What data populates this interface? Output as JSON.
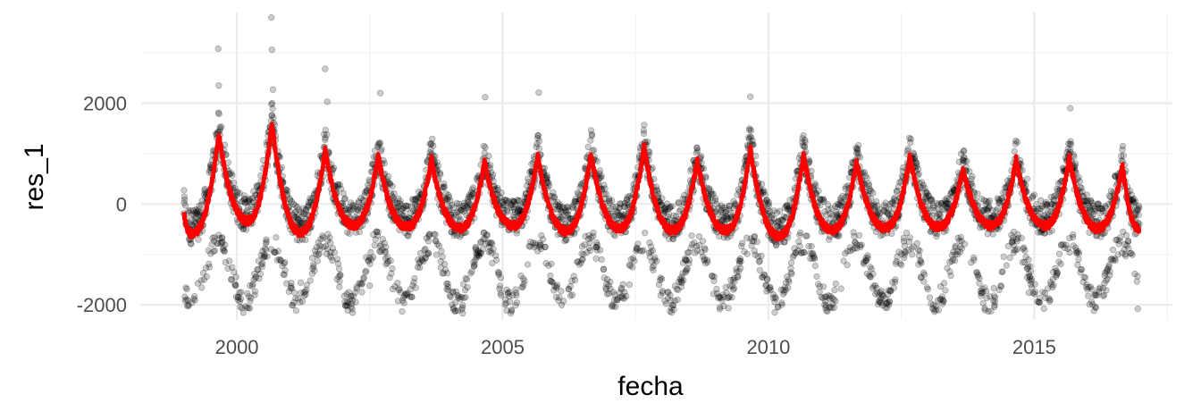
{
  "chart_data": {
    "type": "scatter",
    "title": "",
    "xlabel": "fecha",
    "ylabel": "res_1",
    "xlim": [
      1998.2,
      2017.6
    ],
    "ylim": [
      -2300,
      3800
    ],
    "x_ticks": [
      2000,
      2005,
      2010,
      2015
    ],
    "x_tick_labels": [
      "2000",
      "2005",
      "2010",
      "2015"
    ],
    "y_ticks": [
      -2000,
      0,
      2000
    ],
    "y_tick_labels": [
      "-2000",
      "0",
      "2000"
    ],
    "grid": true,
    "legend": "none",
    "colors": {
      "points": "#000000",
      "trend": "#ff0000",
      "grid": "#ebebeb"
    },
    "series": [
      {
        "kind": "points",
        "note_style": "semi-transparent black dots, daily residuals",
        "points": [
          [
            1999.65,
            3080
          ],
          [
            1999.66,
            2350
          ],
          [
            2000.65,
            3700
          ],
          [
            2000.66,
            3060
          ],
          [
            2000.68,
            2270
          ],
          [
            2001.66,
            2680
          ],
          [
            2001.7,
            2030
          ],
          [
            2002.7,
            2200
          ],
          [
            2004.67,
            2120
          ],
          [
            2005.68,
            2210
          ],
          [
            2009.66,
            2130
          ],
          [
            2015.68,
            1900
          ],
          [
            2004.25,
            -2170
          ],
          [
            2012.1,
            -1950
          ],
          [
            2012.2,
            -1880
          ],
          [
            2016.95,
            -2080
          ],
          [
            2001.2,
            -1560
          ],
          [
            2000.3,
            -1590
          ],
          [
            2006.1,
            -1730
          ],
          [
            2007.2,
            -1760
          ],
          [
            2010.3,
            -1750
          ],
          [
            2014.25,
            -1820
          ],
          [
            2014.9,
            -1760
          ],
          [
            2015.2,
            -1770
          ],
          [
            2016.15,
            -1790
          ],
          [
            2002.5,
            -1620
          ],
          [
            2009.2,
            -1650
          ]
        ],
        "seasonal_pattern": {
          "period_years": 1,
          "peak_phase": 0.66,
          "upper_band": [
            300,
            1600
          ],
          "lower_band": [
            -1700,
            -300
          ]
        }
      },
      {
        "kind": "line",
        "note_style": "red smoothed seasonal trend",
        "x": [
          1999.0,
          1999.1,
          1999.2,
          1999.3,
          1999.4,
          1999.5,
          1999.6,
          1999.66,
          1999.75,
          1999.85,
          1999.95
        ],
        "peaks": [
          [
            1999.66,
            1380
          ],
          [
            2000.66,
            1600
          ],
          [
            2001.66,
            1080
          ],
          [
            2002.66,
            950
          ],
          [
            2003.66,
            880
          ],
          [
            2004.66,
            830
          ],
          [
            2005.66,
            950
          ],
          [
            2006.66,
            1000
          ],
          [
            2007.66,
            1150
          ],
          [
            2008.66,
            870
          ],
          [
            2009.66,
            1100
          ],
          [
            2010.66,
            980
          ],
          [
            2011.66,
            850
          ],
          [
            2012.66,
            950
          ],
          [
            2013.66,
            700
          ],
          [
            2014.66,
            880
          ],
          [
            2015.66,
            920
          ],
          [
            2016.66,
            760
          ]
        ],
        "troughs": [
          [
            1999.15,
            -600
          ],
          [
            2000.2,
            -330
          ],
          [
            2001.2,
            -560
          ],
          [
            2002.2,
            -420
          ],
          [
            2003.2,
            -450
          ],
          [
            2004.2,
            -480
          ],
          [
            2005.2,
            -430
          ],
          [
            2006.2,
            -540
          ],
          [
            2007.2,
            -480
          ],
          [
            2008.2,
            -520
          ],
          [
            2009.2,
            -520
          ],
          [
            2010.2,
            -640
          ],
          [
            2011.2,
            -520
          ],
          [
            2012.2,
            -470
          ],
          [
            2013.2,
            -450
          ],
          [
            2014.2,
            -430
          ],
          [
            2015.2,
            -430
          ],
          [
            2016.2,
            -480
          ]
        ],
        "start": [
          1999.0,
          -200
        ],
        "end": [
          2016.98,
          -500
        ]
      }
    ]
  }
}
